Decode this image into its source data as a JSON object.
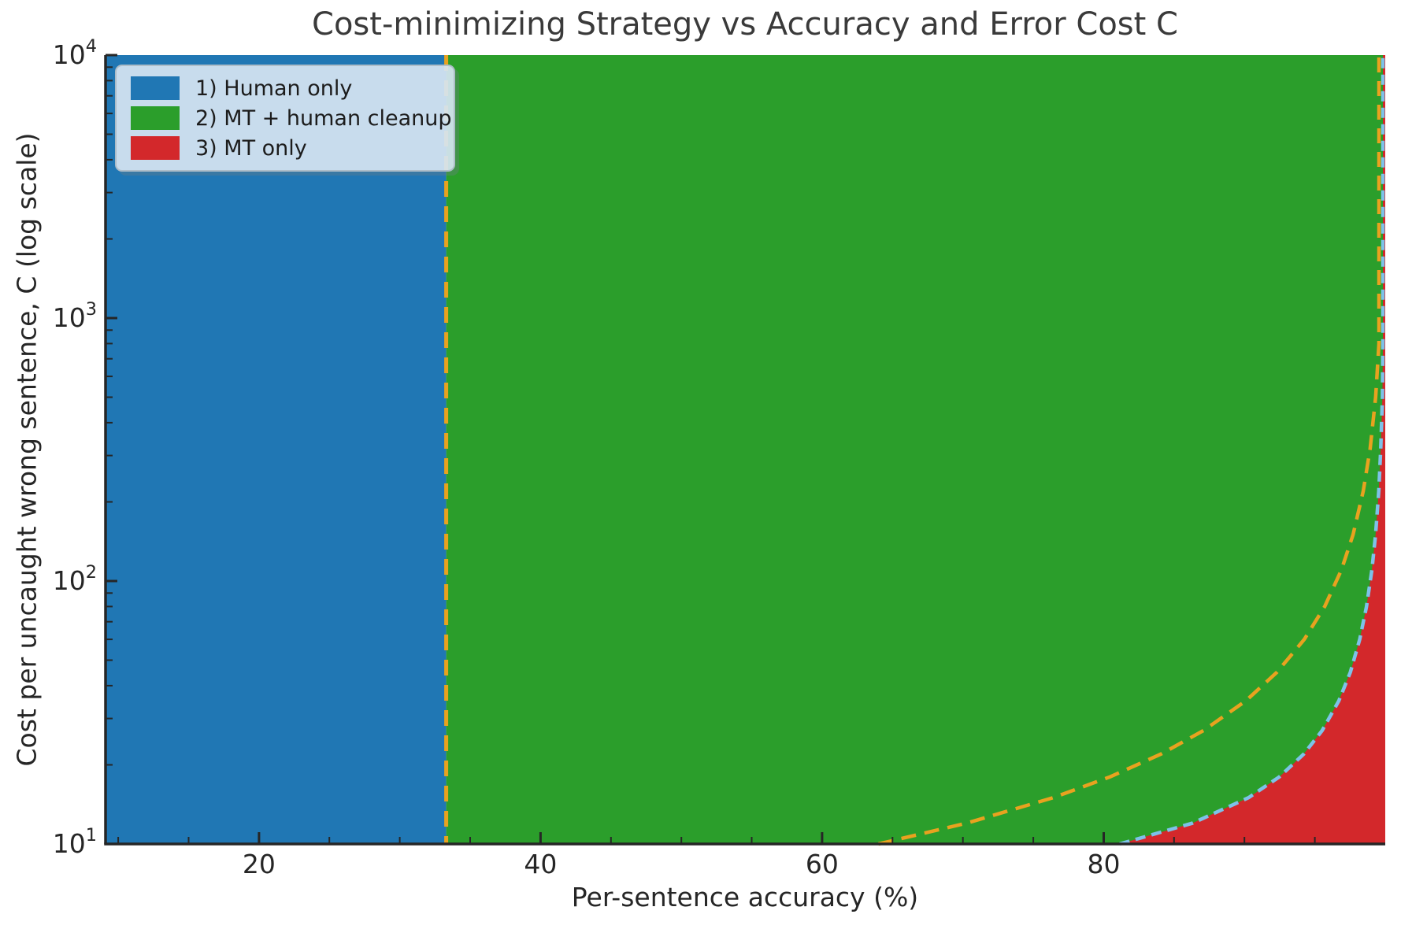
{
  "chart_data": {
    "type": "area",
    "title": "Cost-minimizing Strategy vs Accuracy and Error Cost C",
    "xlabel": "Per-sentence accuracy (%)",
    "ylabel": "Cost per uncaught wrong sentence, C (log scale)",
    "x_range": [
      9.1,
      100
    ],
    "x_major_ticks": [
      20,
      40,
      60,
      80
    ],
    "x_minor_tick_step": 5,
    "y_scale": "log",
    "c_range": [
      10,
      10000
    ],
    "y_major_ticks": [
      10,
      100,
      1000,
      10000
    ],
    "grid": false,
    "legend_position": "upper-left",
    "regions": [
      {
        "label": "1) Human only",
        "color": "#2077b4"
      },
      {
        "label": "2) MT + human cleanup",
        "color": "#2b9e2b"
      },
      {
        "label": "3) MT only",
        "color": "#d3282b"
      }
    ],
    "boundaries": {
      "human_vs_cleanup_line": {
        "style": "dashed",
        "color": "#e8a21f",
        "orientation": "vertical",
        "accuracy_pct": 33.3
      },
      "human_vs_mt_curve": {
        "style": "dashed",
        "color": "#e8a21f",
        "points_C_acc": [
          [
            10,
            64.0
          ],
          [
            12,
            70.26
          ],
          [
            15,
            76.41
          ],
          [
            18,
            80.46
          ],
          [
            22,
            84.09
          ],
          [
            27,
            87.09
          ],
          [
            35,
            90.09
          ],
          [
            45,
            92.31
          ],
          [
            60,
            94.25
          ],
          [
            80,
            95.7
          ],
          [
            110,
            96.88
          ],
          [
            150,
            97.71
          ],
          [
            220,
            98.44
          ],
          [
            320,
            98.93
          ],
          [
            500,
            99.32
          ],
          [
            800,
            99.57
          ],
          [
            1300,
            99.74
          ],
          [
            2200,
            99.84
          ],
          [
            4000,
            99.91
          ],
          [
            7000,
            99.95
          ],
          [
            10000,
            99.97
          ]
        ]
      },
      "cleanup_vs_mt_curve": {
        "style": "dashed",
        "color": "#7dc2e9",
        "points_C_acc": [
          [
            10,
            81.13
          ],
          [
            12,
            86.3
          ],
          [
            15,
            90.29
          ],
          [
            18,
            92.48
          ],
          [
            22,
            94.22
          ],
          [
            27,
            95.52
          ],
          [
            35,
            96.7
          ],
          [
            45,
            97.52
          ],
          [
            60,
            98.19
          ],
          [
            80,
            98.67
          ],
          [
            110,
            99.05
          ],
          [
            150,
            99.31
          ],
          [
            220,
            99.54
          ],
          [
            320,
            99.68
          ],
          [
            500,
            99.8
          ],
          [
            800,
            99.87
          ],
          [
            1300,
            99.92
          ],
          [
            2200,
            99.95
          ],
          [
            4000,
            99.97
          ],
          [
            7000,
            99.985
          ],
          [
            10000,
            99.99
          ]
        ]
      }
    }
  }
}
